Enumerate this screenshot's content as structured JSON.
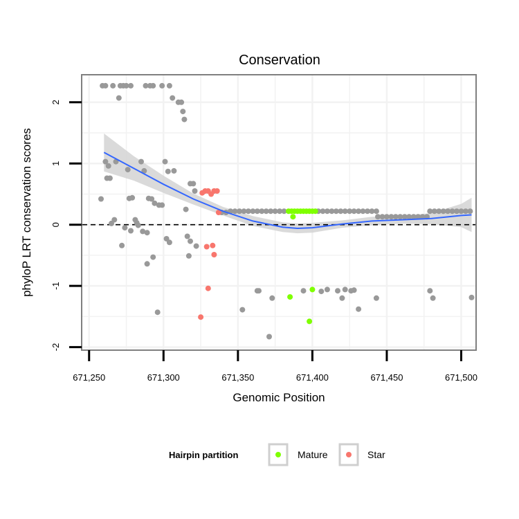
{
  "chart_data": {
    "type": "scatter",
    "title": "Conservation",
    "xlabel": "Genomic Position",
    "ylabel": "phyloP LRT conservation scores",
    "xlim": [
      671245,
      671510
    ],
    "ylim": [
      -2.05,
      2.45
    ],
    "x_ticks": [
      671250,
      671300,
      671350,
      671400,
      671450,
      671500
    ],
    "x_tick_labels": [
      "671,250",
      "671,300",
      "671,350",
      "671,400",
      "671,450",
      "671,500"
    ],
    "y_ticks": [
      -2,
      -1,
      0,
      1,
      2
    ],
    "y_tick_labels": [
      "-2",
      "-1",
      "0",
      "1",
      "2"
    ],
    "reference_line": {
      "y": 0,
      "style": "dashed"
    },
    "legend": {
      "title": "Hairpin partition",
      "position": "bottom",
      "entries": [
        {
          "label": "Mature",
          "color": "#7FFF00"
        },
        {
          "label": "Star",
          "color": "#F8766D"
        }
      ]
    },
    "colors": {
      "other": "#999999",
      "Mature": "#7FFF00",
      "Star": "#F8766D",
      "smooth": "#3366FF",
      "ribbon": "#d4d4d4"
    },
    "smooth": {
      "x": [
        671260,
        671280,
        671300,
        671320,
        671340,
        671360,
        671380,
        671390,
        671400,
        671420,
        671440,
        671460,
        671480,
        671500,
        671507
      ],
      "y": [
        1.18,
        0.92,
        0.66,
        0.42,
        0.22,
        0.06,
        -0.04,
        -0.06,
        -0.05,
        0.01,
        0.06,
        0.08,
        0.1,
        0.15,
        0.16
      ],
      "lower": [
        0.87,
        0.72,
        0.52,
        0.33,
        0.15,
        -0.02,
        -0.12,
        -0.14,
        -0.13,
        -0.05,
        -0.01,
        0.02,
        0.01,
        -0.04,
        -0.12
      ],
      "upper": [
        1.49,
        1.12,
        0.8,
        0.51,
        0.29,
        0.14,
        0.04,
        0.02,
        0.03,
        0.07,
        0.13,
        0.14,
        0.19,
        0.34,
        0.44
      ]
    },
    "series": [
      {
        "name": "Other",
        "color": "#999999",
        "points": [
          [
            671259,
            2.27
          ],
          [
            671261,
            2.27
          ],
          [
            671266,
            2.27
          ],
          [
            671271,
            2.27
          ],
          [
            671273,
            2.27
          ],
          [
            671275,
            2.27
          ],
          [
            671278,
            2.27
          ],
          [
            671288,
            2.27
          ],
          [
            671291,
            2.27
          ],
          [
            671293,
            2.27
          ],
          [
            671299,
            2.27
          ],
          [
            671304,
            2.27
          ],
          [
            671270,
            2.07
          ],
          [
            671306,
            2.07
          ],
          [
            671310,
            2.0
          ],
          [
            671312,
            2.0
          ],
          [
            671313,
            1.85
          ],
          [
            671314,
            1.72
          ],
          [
            671261,
            1.03
          ],
          [
            671263,
            0.96
          ],
          [
            671268,
            1.03
          ],
          [
            671285,
            1.03
          ],
          [
            671287,
            0.88
          ],
          [
            671301,
            1.03
          ],
          [
            671303,
            0.87
          ],
          [
            671307,
            0.88
          ],
          [
            671276,
            0.9
          ],
          [
            671262,
            0.76
          ],
          [
            671264,
            0.76
          ],
          [
            671318,
            0.67
          ],
          [
            671320,
            0.67
          ],
          [
            671321,
            0.55
          ],
          [
            671258,
            0.42
          ],
          [
            671277,
            0.43
          ],
          [
            671279,
            0.44
          ],
          [
            671290,
            0.43
          ],
          [
            671292,
            0.42
          ],
          [
            671294,
            0.35
          ],
          [
            671297,
            0.32
          ],
          [
            671299,
            0.32
          ],
          [
            671315,
            0.25
          ],
          [
            671267,
            0.08
          ],
          [
            671265,
            0.02
          ],
          [
            671278,
            -0.1
          ],
          [
            671281,
            0.08
          ],
          [
            671282,
            0.03
          ],
          [
            671283,
            -0.01
          ],
          [
            671286,
            -0.11
          ],
          [
            671289,
            -0.13
          ],
          [
            671272,
            -0.34
          ],
          [
            671274,
            -0.05
          ],
          [
            671302,
            -0.23
          ],
          [
            671304,
            -0.29
          ],
          [
            671316,
            -0.19
          ],
          [
            671318,
            -0.27
          ],
          [
            671322,
            -0.35
          ],
          [
            671293,
            -0.53
          ],
          [
            671289,
            -0.64
          ],
          [
            671317,
            -0.51
          ],
          [
            671296,
            -1.43
          ],
          [
            671353,
            -1.39
          ],
          [
            671363,
            -1.08
          ],
          [
            671364,
            -1.08
          ],
          [
            671373,
            -1.2
          ],
          [
            671371,
            -1.83
          ],
          [
            671394,
            -1.08
          ],
          [
            671406,
            -1.09
          ],
          [
            671410,
            -1.06
          ],
          [
            671417,
            -1.08
          ],
          [
            671420,
            -1.2
          ],
          [
            671422,
            -1.06
          ],
          [
            671426,
            -1.08
          ],
          [
            671428,
            -1.07
          ],
          [
            671431,
            -1.38
          ],
          [
            671443,
            -1.2
          ],
          [
            671479,
            -1.08
          ],
          [
            671481,
            -1.2
          ],
          [
            671507,
            -1.19
          ],
          [
            671339,
            0.2
          ],
          [
            671342,
            0.2
          ],
          [
            671345,
            0.22
          ],
          [
            671348,
            0.22
          ],
          [
            671351,
            0.22
          ],
          [
            671354,
            0.22
          ],
          [
            671357,
            0.22
          ],
          [
            671360,
            0.22
          ],
          [
            671363,
            0.22
          ],
          [
            671366,
            0.22
          ],
          [
            671369,
            0.22
          ],
          [
            671372,
            0.22
          ],
          [
            671375,
            0.22
          ],
          [
            671378,
            0.22
          ],
          [
            671381,
            0.22
          ],
          [
            671404,
            0.22
          ],
          [
            671407,
            0.22
          ],
          [
            671410,
            0.22
          ],
          [
            671413,
            0.22
          ],
          [
            671416,
            0.22
          ],
          [
            671419,
            0.22
          ],
          [
            671422,
            0.22
          ],
          [
            671425,
            0.22
          ],
          [
            671428,
            0.22
          ],
          [
            671431,
            0.22
          ],
          [
            671434,
            0.22
          ],
          [
            671437,
            0.22
          ],
          [
            671440,
            0.22
          ],
          [
            671443,
            0.22
          ],
          [
            671444,
            0.13
          ],
          [
            671447,
            0.13
          ],
          [
            671450,
            0.13
          ],
          [
            671453,
            0.13
          ],
          [
            671456,
            0.13
          ],
          [
            671459,
            0.13
          ],
          [
            671462,
            0.13
          ],
          [
            671465,
            0.13
          ],
          [
            671468,
            0.13
          ],
          [
            671471,
            0.13
          ],
          [
            671474,
            0.13
          ],
          [
            671477,
            0.13
          ],
          [
            671479,
            0.22
          ],
          [
            671482,
            0.22
          ],
          [
            671485,
            0.22
          ],
          [
            671488,
            0.22
          ],
          [
            671491,
            0.22
          ],
          [
            671494,
            0.22
          ],
          [
            671497,
            0.22
          ],
          [
            671500,
            0.22
          ],
          [
            671503,
            0.22
          ],
          [
            671506,
            0.22
          ]
        ]
      },
      {
        "name": "Mature",
        "color": "#7FFF00",
        "points": [
          [
            671384,
            0.22
          ],
          [
            671386,
            0.22
          ],
          [
            671388,
            0.22
          ],
          [
            671390,
            0.22
          ],
          [
            671392,
            0.22
          ],
          [
            671394,
            0.22
          ],
          [
            671396,
            0.22
          ],
          [
            671398,
            0.22
          ],
          [
            671400,
            0.22
          ],
          [
            671402,
            0.22
          ],
          [
            671387,
            0.13
          ],
          [
            671385,
            -1.18
          ],
          [
            671400,
            -1.06
          ],
          [
            671398,
            -1.58
          ]
        ]
      },
      {
        "name": "Star",
        "color": "#F8766D",
        "points": [
          [
            671326,
            0.52
          ],
          [
            671328,
            0.55
          ],
          [
            671330,
            0.55
          ],
          [
            671332,
            0.5
          ],
          [
            671334,
            0.55
          ],
          [
            671336,
            0.55
          ],
          [
            671329,
            -0.36
          ],
          [
            671333,
            -0.34
          ],
          [
            671334,
            -0.49
          ],
          [
            671330,
            -1.04
          ],
          [
            671325,
            -1.51
          ],
          [
            671337,
            0.2
          ]
        ]
      }
    ]
  }
}
